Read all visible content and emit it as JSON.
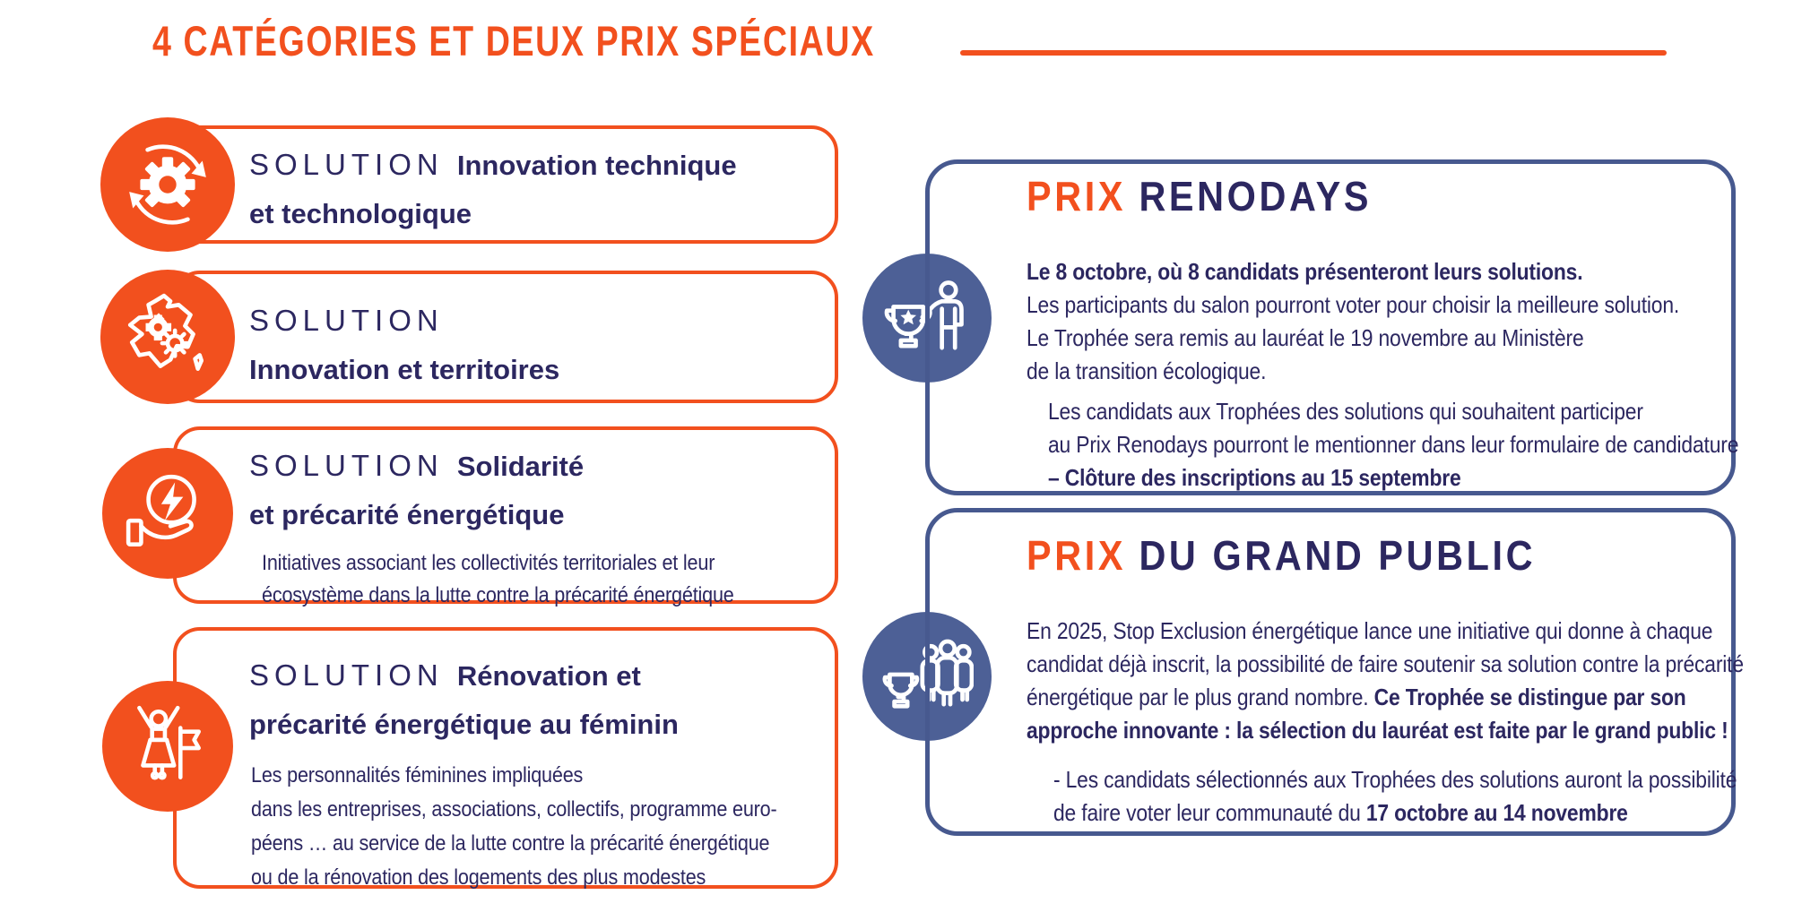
{
  "colors": {
    "orange": "#f2501e",
    "navy": "#2c2760",
    "blue_border": "#47598f",
    "blue_fill": "#4d6096"
  },
  "header": {
    "title": "4 CATÉGORIES ET DEUX PRIX SPÉCIAUX"
  },
  "categories": [
    {
      "icon": "gear-cycle-icon",
      "heading_lines": [
        [
          {
            "t": "SOLUTION ",
            "s": true
          },
          {
            "t": "Innovation technique",
            "b": true
          }
        ],
        [
          {
            "t": "et technologique",
            "b": true
          }
        ]
      ],
      "description": ""
    },
    {
      "icon": "france-map-icon",
      "heading_lines": [
        [
          {
            "t": "SOLUTION",
            "s": true
          }
        ],
        [
          {
            "t": "Innovation et territoires",
            "b": true
          }
        ]
      ],
      "description": ""
    },
    {
      "icon": "energy-hand-icon",
      "heading_lines": [
        [
          {
            "t": "SOLUTION ",
            "s": true
          },
          {
            "t": "Solidarité",
            "b": true
          }
        ],
        [
          {
            "t": "et précarité énergétique",
            "b": true
          }
        ]
      ],
      "description": "Initiatives associant les collectivités territoriales et leur\nécosystème dans la lutte contre la précarité énergétique"
    },
    {
      "icon": "woman-flag-icon",
      "heading_lines": [
        [
          {
            "t": "SOLUTION ",
            "s": true
          },
          {
            "t": "Rénovation et",
            "b": true
          }
        ],
        [
          {
            "t": "précarité énergétique au féminin",
            "b": true
          }
        ]
      ],
      "description": "Les personnalités féminines impliquées\ndans les entreprises, associations, collectifs, programme euro-\npéens … au service de la lutte contre la précarité énergétique\nou de la rénovation des logements des plus modestes"
    }
  ],
  "prizes": [
    {
      "icon": "trophy-person-icon",
      "title_accent": "PRIX",
      "title_rest": "RENODAYS",
      "paragraphs": [
        {
          "lines": [
            [
              {
                "t": "Le 8 octobre, où 8 candidats présenteront leurs solutions.",
                "b": true
              }
            ],
            [
              {
                "t": "Les participants du salon pourront voter pour choisir la meilleure solution."
              }
            ],
            [
              {
                "t": "Le Trophée sera remis au lauréat le 19 novembre au Ministère"
              }
            ],
            [
              {
                "t": "de la transition écologique."
              }
            ]
          ]
        },
        {
          "lines": [
            [
              {
                "t": "Les candidats aux Trophées des solutions qui souhaitent participer"
              }
            ],
            [
              {
                "t": "au Prix Renodays pourront le mentionner dans leur formulaire de candidature"
              }
            ],
            [
              {
                "t": "– Clôture des inscriptions au 15 septembre",
                "b": true
              }
            ]
          ]
        }
      ]
    },
    {
      "icon": "trophy-group-icon",
      "title_accent": "PRIX",
      "title_rest": "DU GRAND PUBLIC",
      "paragraphs": [
        {
          "lines": [
            [
              {
                "t": "En 2025, Stop Exclusion énergétique lance une initiative qui donne à chaque"
              }
            ],
            [
              {
                "t": "candidat déjà inscrit, la possibilité de faire soutenir sa solution contre la précarité"
              }
            ],
            [
              {
                "t": "énergétique par le plus grand nombre. "
              },
              {
                "t": "Ce Trophée se distingue par son",
                "b": true
              }
            ],
            [
              {
                "t": "approche innovante : la sélection du lauréat est faite par le grand public !",
                "b": true
              }
            ]
          ]
        },
        {
          "lines": [
            [
              {
                "t": "- Les candidats sélectionnés aux Trophées des solutions auront la possibilité"
              }
            ],
            [
              {
                "t": "de faire voter leur communauté du "
              },
              {
                "t": "17 octobre au 14 novembre",
                "b": true
              }
            ]
          ]
        }
      ]
    }
  ]
}
